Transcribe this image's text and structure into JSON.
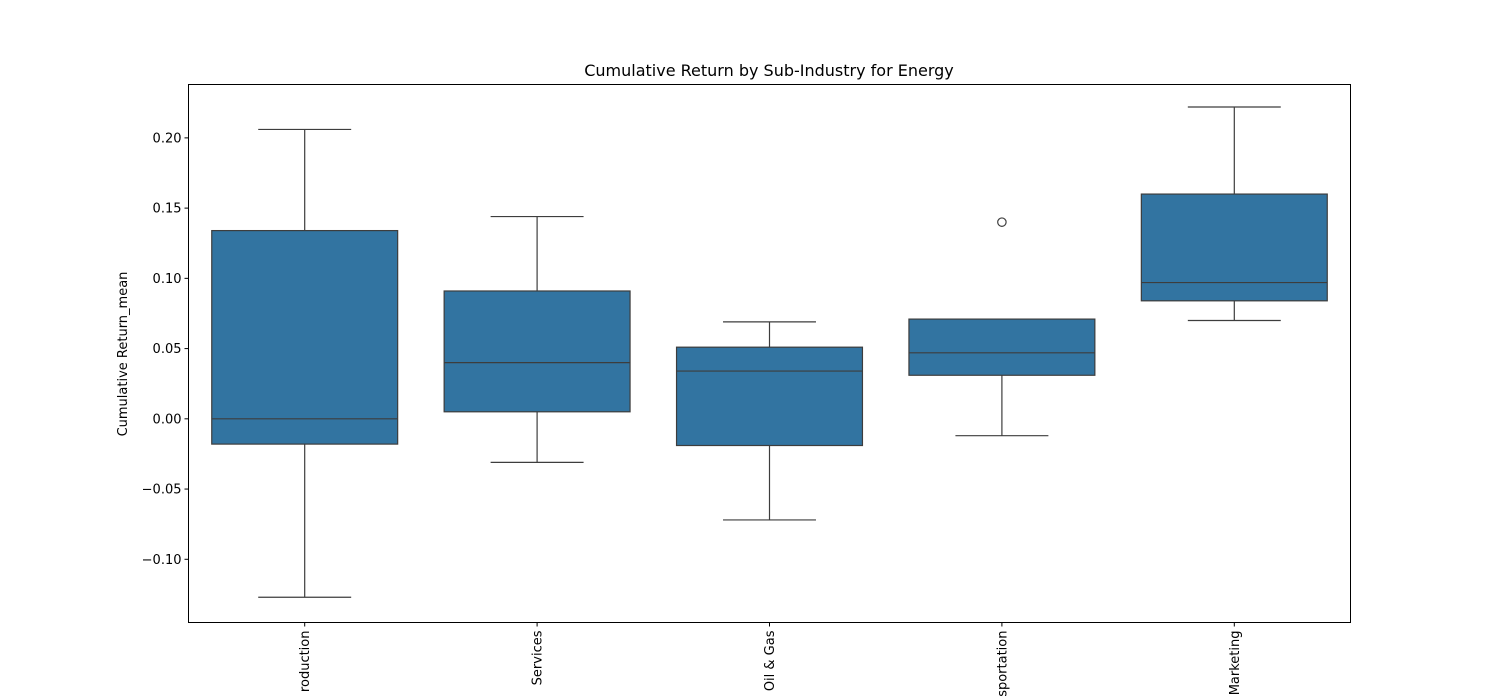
{
  "chart_data": {
    "type": "box",
    "title": "Cumulative Return by Sub-Industry for Energy",
    "xlabel": "",
    "ylabel": "Cumulative Return_mean",
    "ylim": [
      -0.145,
      0.238
    ],
    "yticks": [
      -0.1,
      -0.05,
      0.0,
      0.05,
      0.1,
      0.15,
      0.2
    ],
    "ytick_labels": [
      "−0.10",
      "−0.05",
      "0.00",
      "0.05",
      "0.10",
      "0.15",
      "0.20"
    ],
    "categories": [
      "roduction",
      "Services",
      "Oil & Gas",
      "sportation",
      "Marketing"
    ],
    "boxes": [
      {
        "whisker_low": -0.127,
        "q1": -0.018,
        "median": 0.0,
        "q3": 0.134,
        "whisker_high": 0.206,
        "outliers": []
      },
      {
        "whisker_low": -0.031,
        "q1": 0.005,
        "median": 0.04,
        "q3": 0.091,
        "whisker_high": 0.144,
        "outliers": []
      },
      {
        "whisker_low": -0.072,
        "q1": -0.019,
        "median": 0.034,
        "q3": 0.051,
        "whisker_high": 0.069,
        "outliers": []
      },
      {
        "whisker_low": -0.012,
        "q1": 0.031,
        "median": 0.047,
        "q3": 0.071,
        "whisker_high": 0.071,
        "outliers": [
          0.14
        ]
      },
      {
        "whisker_low": 0.07,
        "q1": 0.084,
        "median": 0.097,
        "q3": 0.16,
        "whisker_high": 0.222,
        "outliers": []
      }
    ],
    "grid": false,
    "colors": {
      "box_fill": "#3274a1",
      "line": "#3d3d3d",
      "axis": "#000000"
    }
  }
}
